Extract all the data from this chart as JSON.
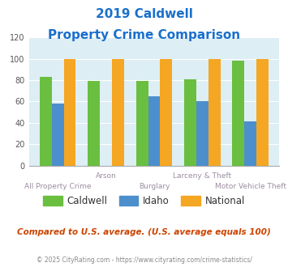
{
  "title_line1": "2019 Caldwell",
  "title_line2": "Property Crime Comparison",
  "categories": [
    "All Property Crime",
    "Arson",
    "Burglary",
    "Larceny & Theft",
    "Motor Vehicle Theft"
  ],
  "caldwell": [
    83,
    79,
    79,
    81,
    98
  ],
  "idaho": [
    58,
    0,
    65,
    60,
    41
  ],
  "national": [
    100,
    100,
    100,
    100,
    100
  ],
  "color_caldwell": "#6abf40",
  "color_idaho": "#4d8fcc",
  "color_national": "#f5a623",
  "bg_color": "#ddeef5",
  "ylim": [
    0,
    120
  ],
  "yticks": [
    0,
    20,
    40,
    60,
    80,
    100,
    120
  ],
  "footer_text": "Compared to U.S. average. (U.S. average equals 100)",
  "copyright_text": "© 2025 CityRating.com - https://www.cityrating.com/crime-statistics/",
  "title_color": "#1a6fcc",
  "xlabel_color": "#9b8ea0",
  "footer_color": "#cc4400",
  "copyright_color": "#888888",
  "legend_labels": [
    "Caldwell",
    "Idaho",
    "National"
  ],
  "upper_labels": {
    "1": "Arson",
    "3": "Larceny & Theft"
  },
  "lower_labels": {
    "0": "All Property Crime",
    "2": "Burglary",
    "4": "Motor Vehicle Theft"
  }
}
